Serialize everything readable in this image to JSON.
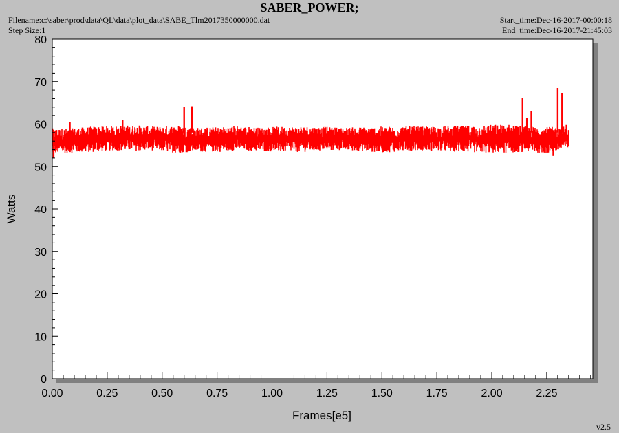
{
  "header": {
    "title": "SABER_POWER;",
    "filename": "Filename:c:\\saber\\prod\\data\\QL\\data\\plot_data\\SABE_Tlm2017350000000.dat",
    "step_size": "Step Size:1",
    "start_time": "Start_time:Dec-16-2017-00:00:18",
    "end_time": "End_time:Dec-16-2017-21:45:03"
  },
  "footer": {
    "version": "v2.5"
  },
  "colors": {
    "series": "#ff0000",
    "background": "#c0c0c0",
    "plot_area": "#ffffff"
  },
  "chart_data": {
    "type": "line",
    "xlabel": "Frames[e5]",
    "ylabel": "Watts",
    "xlim": [
      0,
      2.46
    ],
    "ylim": [
      0,
      80
    ],
    "x_ticks": [
      0.0,
      0.25,
      0.5,
      0.75,
      1.0,
      1.25,
      1.5,
      1.75,
      2.0,
      2.25
    ],
    "x_tick_labels": [
      "0.00",
      "0.25",
      "0.50",
      "0.75",
      "1.00",
      "1.25",
      "1.50",
      "1.75",
      "2.00",
      "2.25"
    ],
    "y_ticks": [
      0,
      10,
      20,
      30,
      40,
      50,
      60,
      70,
      80
    ],
    "y_tick_labels": [
      "0",
      "10",
      "20",
      "30",
      "40",
      "50",
      "60",
      "70",
      "80"
    ],
    "grid": false,
    "series": [
      {
        "x_range": [
          0,
          2.35
        ],
        "band_low": [
          53.0,
          53.2,
          53.4,
          53.8,
          53.6,
          53.8,
          53.2,
          53.5,
          53.4,
          53.8,
          53.6,
          53.5,
          53.4,
          53.7,
          53.8,
          53.6,
          53.3,
          53.6,
          53.8,
          53.6,
          53.4,
          53.2,
          53.2,
          53.5,
          53.0,
          54.0
        ],
        "band_high": [
          59.0,
          59.0,
          59.5,
          59.6,
          59.8,
          59.4,
          59.7,
          59.2,
          59.3,
          59.6,
          59.2,
          59.4,
          59.5,
          59.4,
          59.2,
          59.3,
          59.4,
          59.6,
          59.4,
          59.5,
          59.6,
          59.8,
          60.0,
          59.5,
          59.3,
          59.5
        ],
        "spikes": [
          {
            "x": 0.006,
            "y": 52.0
          },
          {
            "x": 0.08,
            "y": 60.5
          },
          {
            "x": 0.32,
            "y": 61.0
          },
          {
            "x": 0.6,
            "y": 64.0
          },
          {
            "x": 0.635,
            "y": 64.2
          },
          {
            "x": 2.14,
            "y": 66.2
          },
          {
            "x": 2.16,
            "y": 61.5
          },
          {
            "x": 2.18,
            "y": 63.0
          },
          {
            "x": 2.3,
            "y": 68.5
          },
          {
            "x": 2.32,
            "y": 67.3
          },
          {
            "x": 2.28,
            "y": 52.5
          },
          {
            "x": 2.34,
            "y": 59.8
          }
        ]
      }
    ]
  }
}
